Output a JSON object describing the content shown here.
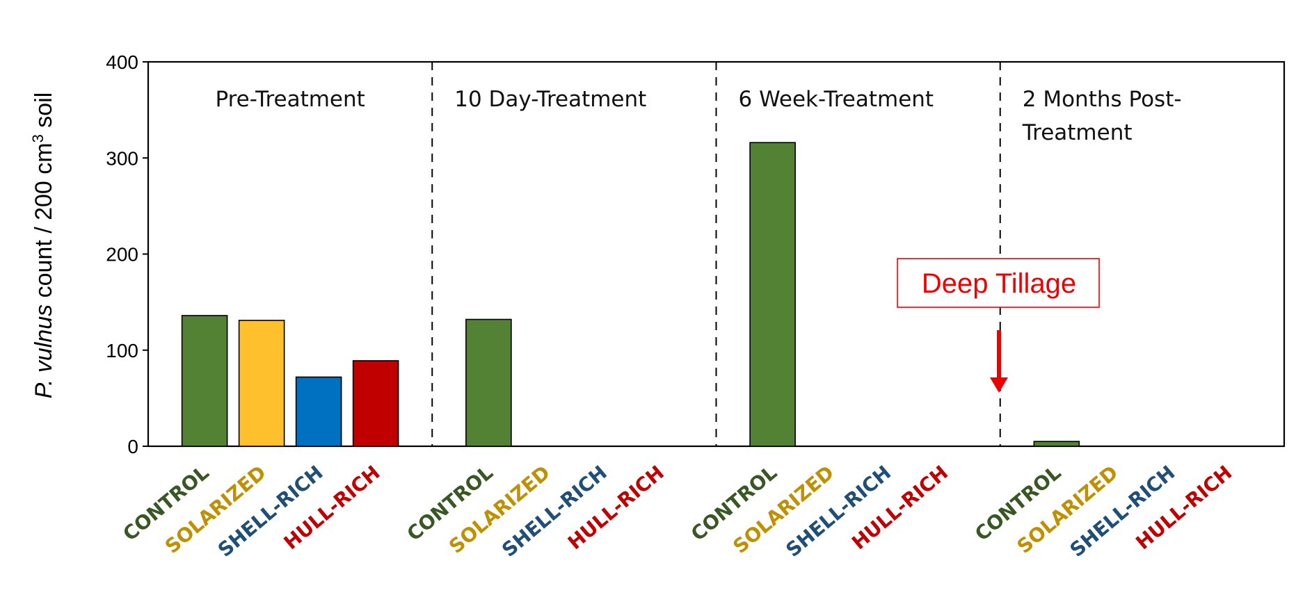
{
  "chart_data": {
    "type": "bar",
    "ylabel_italic": "P. vulnus",
    "ylabel_rest": " count / 200 cm",
    "ylabel_sup": "3",
    "ylabel_end": " soil",
    "ylim": [
      0,
      400
    ],
    "yticks": [
      "0",
      "100",
      "200",
      "300",
      "400"
    ],
    "grid": false,
    "categories": [
      "CONTROL",
      "SOLARIZED",
      "SHELL-RICH",
      "HULL-RICH"
    ],
    "category_colors": [
      "#385723",
      "#BF9000",
      "#1F4E79",
      "#C00000"
    ],
    "bar_colors": [
      "#548235",
      "#FFC02D",
      "#0070C0",
      "#C00000"
    ],
    "groups": [
      {
        "label_lines": [
          "Pre-Treatment"
        ],
        "values": [
          136,
          131,
          72,
          89
        ]
      },
      {
        "label_lines": [
          "10 Day-Treatment"
        ],
        "values": [
          132,
          0,
          0,
          0
        ]
      },
      {
        "label_lines": [
          "6 Week-Treatment"
        ],
        "values": [
          316,
          0,
          0,
          0
        ]
      },
      {
        "label_lines": [
          "2 Months Post-",
          "Treatment"
        ],
        "values": [
          5,
          0,
          0,
          0
        ]
      }
    ],
    "annotation": {
      "text": "Deep Tillage",
      "color": "#EE0000"
    }
  }
}
